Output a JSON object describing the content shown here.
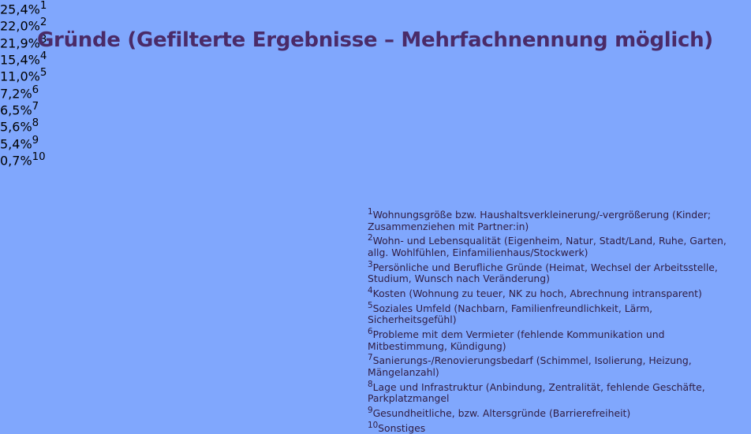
{
  "chart_data": {
    "type": "bar",
    "orientation": "horizontal",
    "title": "Gründe (Gefilterte Ergebnisse – Mehrfachnennung möglich)",
    "markers": [
      "1",
      "2",
      "3",
      "4",
      "5",
      "6",
      "7",
      "8",
      "9",
      "10"
    ],
    "categories": [
      "Wohnungsgröße bzw. Haushaltsverkleinerung/-vergrößerung (Kinder; Zusammenziehen mit Partner:in)",
      "Wohn- und Lebensqualität (Eigenheim, Natur, Stadt/Land, Ruhe, Garten, allg. Wohlfühlen, Einfamilienhaus/Stockwerk)",
      "Persönliche und Berufliche Gründe (Heimat, Wechsel der Arbeitsstelle, Studium, Wunsch nach Veränderung)",
      "Kosten (Wohnung zu teuer, NK zu hoch, Abrechnung intransparent)",
      "Soziales Umfeld (Nachbarn, Familienfreundlichkeit, Lärm, Sicherheitsgefühl)",
      "Probleme mit dem Vermieter (fehlende Kommunikation und Mitbestimmung, Kündigung)",
      "Sanierungs-/Renovierungsbedarf (Schimmel, Isolierung, Heizung, Mängelanzahl)",
      "Lage und Infrastruktur (Anbindung, Zentralität, fehlende Geschäfte, Parkplatzmangel",
      "Gesundheitliche, bzw. Altersgründe (Barrierefreiheit)",
      "Sonstiges"
    ],
    "values": [
      25.4,
      22.0,
      21.9,
      15.4,
      11.0,
      7.2,
      6.5,
      5.6,
      5.4,
      0.7
    ],
    "value_labels": [
      "25,4%",
      "22,0%",
      "21,9%",
      "15,4%",
      "11,0%",
      "7,2%",
      "6,5%",
      "5,6%",
      "5,4%",
      "0,7%"
    ],
    "color": "#51305f"
  }
}
